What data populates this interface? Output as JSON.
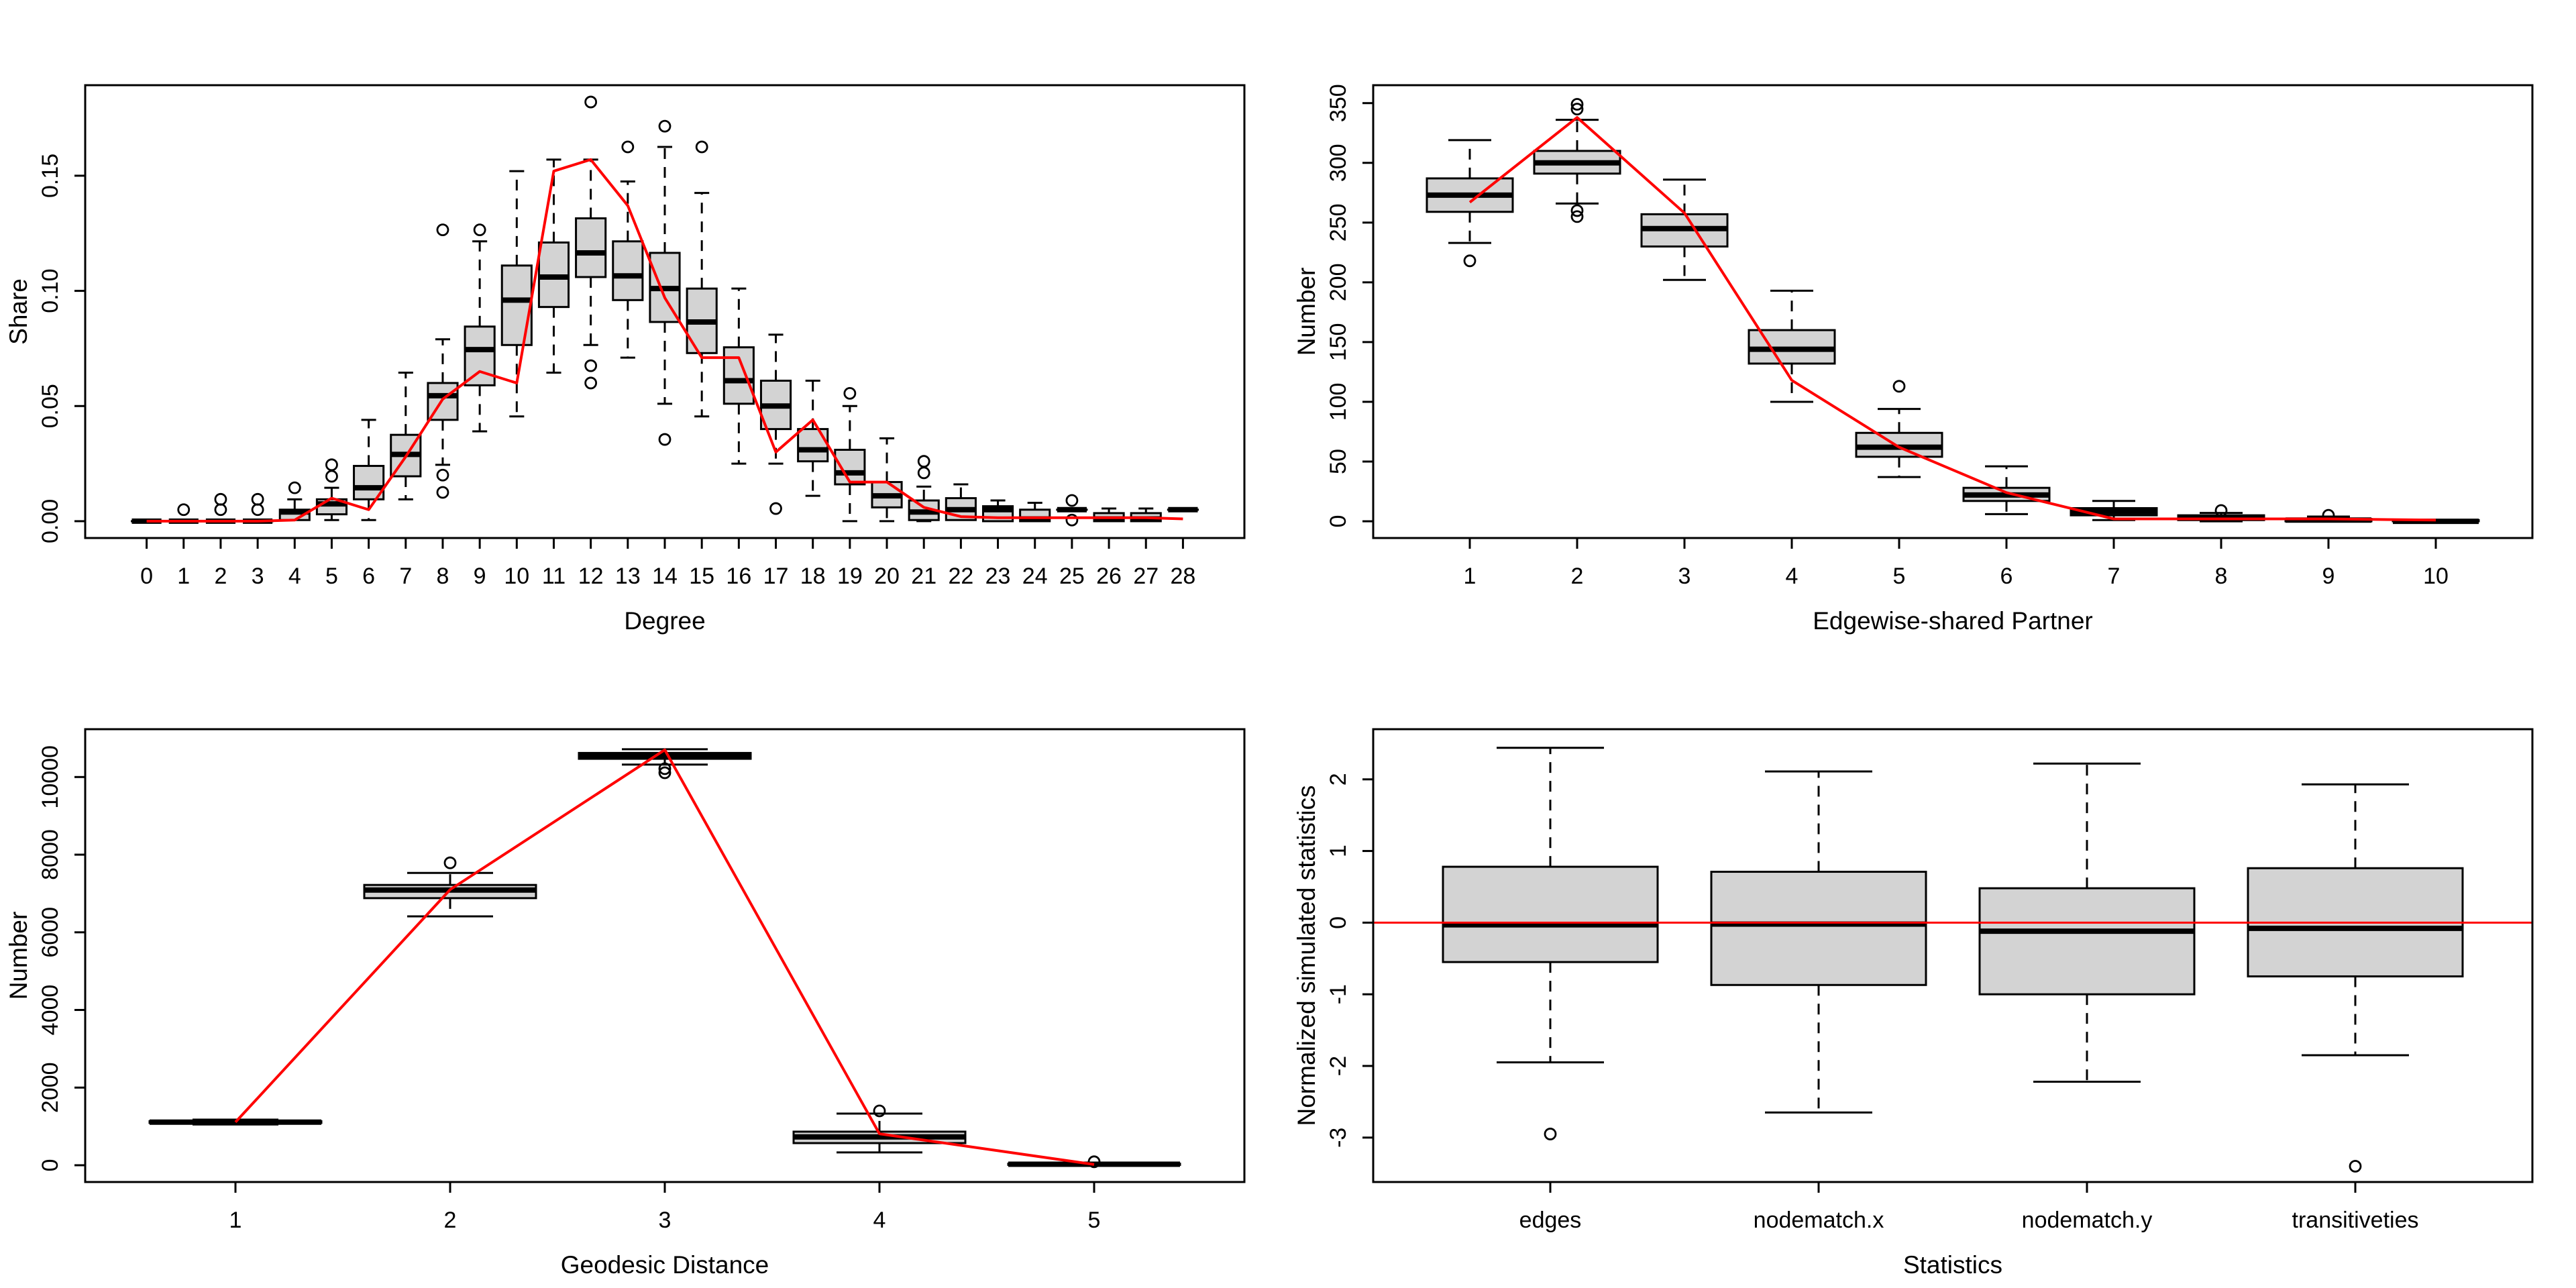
{
  "style": {
    "background": "#ffffff",
    "box_fill": "#d3d3d3",
    "box_stroke": "#000000",
    "observed_color": "#ff0000",
    "axis_color": "#000000"
  },
  "chart_data": [
    {
      "id": "degree-share",
      "type": "boxplot",
      "title": "",
      "xlabel": "Degree",
      "ylabel": "Share",
      "categories": [
        "0",
        "1",
        "2",
        "3",
        "4",
        "5",
        "6",
        "7",
        "8",
        "9",
        "10",
        "11",
        "12",
        "13",
        "14",
        "15",
        "16",
        "17",
        "18",
        "19",
        "20",
        "21",
        "22",
        "23",
        "24",
        "25",
        "26",
        "27",
        "28"
      ],
      "ylim": [
        -0.0073,
        0.1893
      ],
      "yticks": [
        0,
        0.05,
        0.1,
        0.15
      ],
      "ytick_labels": [
        "0.00",
        "0.05",
        "0.10",
        "0.15"
      ],
      "grid": false,
      "boxes": [
        [
          0,
          0,
          0,
          0,
          0
        ],
        [
          0,
          0,
          0,
          0,
          0
        ],
        [
          0,
          0,
          0,
          0,
          0
        ],
        [
          0,
          0,
          0,
          0,
          0
        ],
        [
          0.0005,
          0.0005,
          0.004,
          0.005,
          0.0095
        ],
        [
          0.0005,
          0.003,
          0.0075,
          0.0095,
          0.0145
        ],
        [
          0.0005,
          0.0095,
          0.0145,
          0.024,
          0.044
        ],
        [
          0.0095,
          0.0195,
          0.029,
          0.0375,
          0.0645
        ],
        [
          0.0245,
          0.044,
          0.0545,
          0.06,
          0.079
        ],
        [
          0.039,
          0.059,
          0.0745,
          0.0845,
          0.1215
        ],
        [
          0.0455,
          0.0765,
          0.096,
          0.111,
          0.152
        ],
        [
          0.0645,
          0.093,
          0.106,
          0.121,
          0.157
        ],
        [
          0.0765,
          0.106,
          0.1165,
          0.1315,
          0.157
        ],
        [
          0.071,
          0.096,
          0.1065,
          0.1215,
          0.1475
        ],
        [
          0.051,
          0.0865,
          0.101,
          0.1165,
          0.1625
        ],
        [
          0.0455,
          0.073,
          0.0865,
          0.101,
          0.1425
        ],
        [
          0.025,
          0.051,
          0.061,
          0.0755,
          0.101
        ],
        [
          0.025,
          0.04,
          0.05,
          0.061,
          0.081
        ],
        [
          0.011,
          0.026,
          0.031,
          0.04,
          0.061
        ],
        [
          0,
          0.016,
          0.021,
          0.031,
          0.05
        ],
        [
          0,
          0.006,
          0.011,
          0.017,
          0.036
        ],
        [
          0,
          0.0005,
          0.004,
          0.009,
          0.015
        ],
        [
          0.0005,
          0.0005,
          0.005,
          0.01,
          0.016
        ],
        [
          0,
          0,
          0.005,
          0.0065,
          0.009
        ],
        [
          0,
          0,
          0.001,
          0.005,
          0.008
        ],
        [
          0.005,
          0.005,
          0.005,
          0.005,
          0.005
        ],
        [
          0,
          0,
          0.001,
          0.0035,
          0.0055
        ],
        [
          0,
          0,
          0.001,
          0.0035,
          0.0055
        ],
        [
          0.005,
          0.005,
          0.005,
          0.005,
          0.005
        ]
      ],
      "outliers": [
        [],
        [
          0.005
        ],
        [
          0.005,
          0.0095
        ],
        [
          0.005,
          0.0095
        ],
        [
          0.0145
        ],
        [
          0.0195,
          0.0245
        ],
        [],
        [],
        [
          0.02,
          0.0125,
          0.1265
        ],
        [
          0.1265
        ],
        [],
        [],
        [
          0.182,
          0.0675,
          0.06
        ],
        [
          0.1625
        ],
        [
          0.1715,
          0.0355
        ],
        [
          0.1625
        ],
        [],
        [
          0.0055
        ],
        [],
        [
          0.0555
        ],
        [],
        [
          0.026,
          0.021
        ],
        [],
        [],
        [],
        [
          0.009,
          0.0005
        ],
        [],
        [],
        []
      ],
      "observed": {
        "type": "line",
        "values": [
          0,
          0,
          0,
          0,
          0.0005,
          0.01,
          0.005,
          0.028,
          0.053,
          0.065,
          0.06,
          0.152,
          0.157,
          0.137,
          0.097,
          0.071,
          0.071,
          0.03,
          0.044,
          0.017,
          0.017,
          0.006,
          0.002,
          0.0015,
          0.0015,
          0.0015,
          0.0015,
          0.0015,
          0.001
        ]
      }
    },
    {
      "id": "edgewise-shared-partner",
      "type": "boxplot",
      "title": "",
      "xlabel": "Edgewise-shared Partner",
      "ylabel": "Number",
      "categories": [
        "1",
        "2",
        "3",
        "4",
        "5",
        "6",
        "7",
        "8",
        "9",
        "10"
      ],
      "ylim": [
        -14,
        365
      ],
      "yticks": [
        0,
        50,
        100,
        150,
        200,
        250,
        300,
        350
      ],
      "ytick_labels": [
        "0",
        "50",
        "100",
        "150",
        "200",
        "250",
        "300",
        "350"
      ],
      "grid": false,
      "boxes": [
        [
          233,
          259,
          273,
          287,
          319
        ],
        [
          266,
          291,
          300,
          310,
          336
        ],
        [
          202,
          230,
          245,
          257,
          286
        ],
        [
          100,
          132,
          144,
          160,
          193
        ],
        [
          37,
          54,
          62,
          74,
          94
        ],
        [
          6,
          17,
          22,
          28,
          46
        ],
        [
          1,
          5,
          8,
          11,
          17
        ],
        [
          0,
          1,
          3,
          5,
          7
        ],
        [
          0,
          0,
          1,
          2,
          4
        ],
        [
          0,
          0,
          0,
          1,
          1
        ]
      ],
      "outliers": [
        [
          218
        ],
        [
          349,
          345,
          260,
          255
        ],
        [],
        [],
        [
          113
        ],
        [],
        [],
        [
          9
        ],
        [
          5
        ],
        []
      ],
      "observed": {
        "type": "line",
        "values": [
          267,
          338,
          258,
          118,
          62,
          24,
          2,
          2,
          2,
          1
        ]
      }
    },
    {
      "id": "geodesic-distance",
      "type": "boxplot",
      "title": "",
      "xlabel": "Geodesic Distance",
      "ylabel": "Number",
      "categories": [
        "1",
        "2",
        "3",
        "4",
        "5"
      ],
      "ylim": [
        -432,
        11232
      ],
      "yticks": [
        0,
        2000,
        4000,
        6000,
        8000,
        10000
      ],
      "ytick_labels": [
        "0",
        "2000",
        "4000",
        "6000",
        "8000",
        "10000"
      ],
      "grid": false,
      "boxes": [
        [
          1050,
          1090,
          1110,
          1135,
          1175
        ],
        [
          6410,
          6880,
          7090,
          7220,
          7530
        ],
        [
          10320,
          10470,
          10545,
          10620,
          10715
        ],
        [
          330,
          570,
          730,
          865,
          1330
        ],
        [
          0,
          10,
          25,
          40,
          55
        ]
      ],
      "outliers": [
        [],
        [
          7790
        ],
        [
          10215,
          10110
        ],
        [
          1400
        ],
        [
          90
        ]
      ],
      "observed": {
        "type": "line",
        "values": [
          1110,
          7100,
          10700,
          810,
          20
        ]
      }
    },
    {
      "id": "statistics",
      "type": "boxplot",
      "title": "",
      "xlabel": "Statistics",
      "ylabel": "Normalized simulated statistics",
      "categories": [
        "edges",
        "nodematch.x",
        "nodematch.y",
        "transitiveties"
      ],
      "ylim": [
        -3.62,
        2.7
      ],
      "yticks": [
        -3,
        -2,
        -1,
        0,
        1,
        2
      ],
      "ytick_labels": [
        "-3",
        "-2",
        "-1",
        "0",
        "1",
        "2"
      ],
      "grid": false,
      "boxes": [
        [
          -1.95,
          -0.55,
          -0.03,
          0.78,
          2.44
        ],
        [
          -2.65,
          -0.87,
          -0.02,
          0.71,
          2.11
        ],
        [
          -2.22,
          -1.0,
          -0.12,
          0.48,
          2.22
        ],
        [
          -1.85,
          -0.75,
          -0.08,
          0.76,
          1.93
        ]
      ],
      "outliers": [
        [
          -2.95
        ],
        [],
        [],
        [
          -3.4
        ]
      ],
      "observed": {
        "type": "hline",
        "value": 0
      }
    }
  ]
}
